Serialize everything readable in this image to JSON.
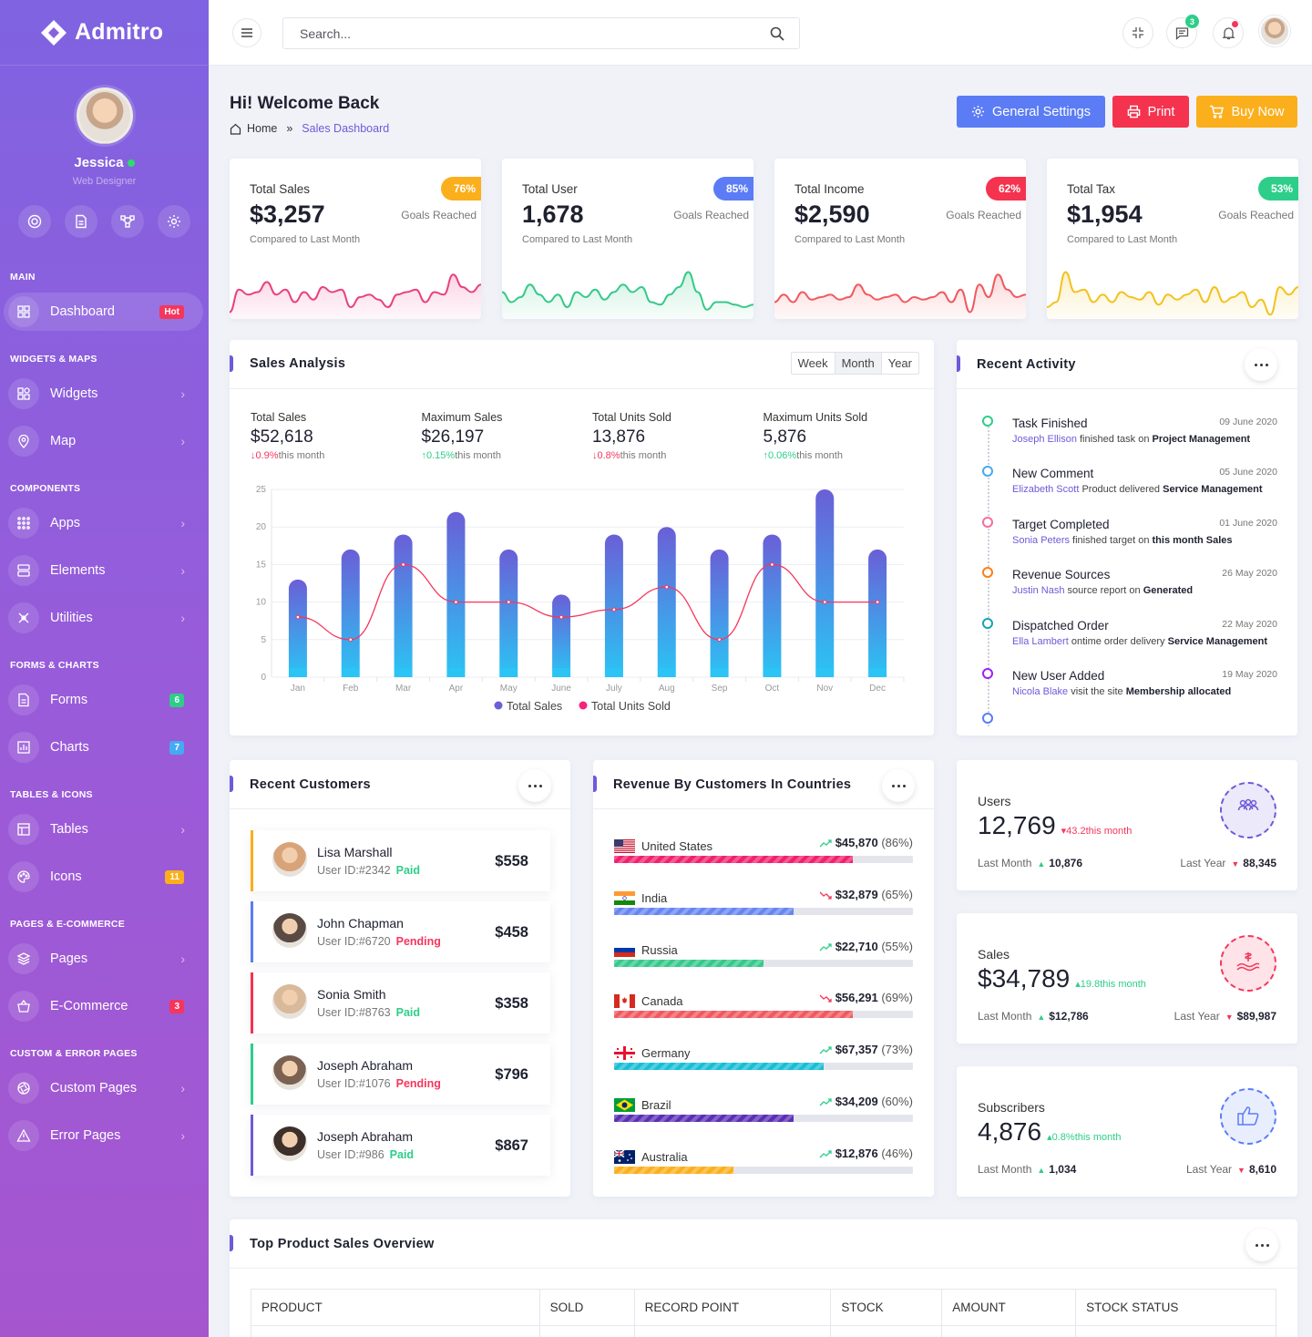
{
  "app": {
    "name": "Admitro"
  },
  "profile": {
    "name": "Jessica",
    "role": "Web Designer",
    "actions": [
      "lifebuoy-icon",
      "document-icon",
      "share-icon",
      "settings-icon"
    ]
  },
  "sidebar": {
    "sections": [
      {
        "title": "MAIN",
        "items": [
          {
            "label": "Dashboard",
            "icon": "grid-icon",
            "badge": "Hot",
            "badge_color": "#f5365c",
            "active": true
          }
        ]
      },
      {
        "title": "WIDGETS & MAPS",
        "items": [
          {
            "label": "Widgets",
            "icon": "widgets-icon"
          },
          {
            "label": "Map",
            "icon": "map-pin-icon"
          }
        ]
      },
      {
        "title": "COMPONENTS",
        "items": [
          {
            "label": "Apps",
            "icon": "apps-icon"
          },
          {
            "label": "Elements",
            "icon": "layers-icon"
          },
          {
            "label": "Utilities",
            "icon": "tools-icon"
          }
        ]
      },
      {
        "title": "FORMS & CHARTS",
        "items": [
          {
            "label": "Forms",
            "icon": "form-icon",
            "badge": "6",
            "badge_color": "#2dce89"
          },
          {
            "label": "Charts",
            "icon": "chart-icon",
            "badge": "7",
            "badge_color": "#45aaf2"
          }
        ]
      },
      {
        "title": "TABLES & ICONS",
        "items": [
          {
            "label": "Tables",
            "icon": "table-icon"
          },
          {
            "label": "Icons",
            "icon": "palette-icon",
            "badge": "11",
            "badge_color": "#fbaf1c"
          }
        ]
      },
      {
        "title": "PAGES & E-COMMERCE",
        "items": [
          {
            "label": "Pages",
            "icon": "stack-icon"
          },
          {
            "label": "E-Commerce",
            "icon": "basket-icon",
            "badge": "3",
            "badge_color": "#f5365c"
          }
        ]
      },
      {
        "title": "CUSTOM & ERROR PAGES",
        "items": [
          {
            "label": "Custom Pages",
            "icon": "aperture-icon"
          },
          {
            "label": "Error Pages",
            "icon": "warning-icon"
          }
        ]
      }
    ]
  },
  "topbar": {
    "search_placeholder": "Search...",
    "message_count": "3"
  },
  "header": {
    "title": "Hi! Welcome Back",
    "breadcrumb": {
      "home": "Home",
      "separator": "»",
      "current": "Sales Dashboard"
    },
    "buttons": {
      "settings": "General Settings",
      "print": "Print",
      "buy": "Buy Now"
    }
  },
  "stats": [
    {
      "title": "Total Sales",
      "value": "$3,257",
      "percent": "76%",
      "goal": "Goals Reached",
      "compare": "Compared to Last Month",
      "color": "#fbaf1c",
      "line": "#e8427d",
      "fill": "#fbd0e2"
    },
    {
      "title": "Total User",
      "value": "1,678",
      "percent": "85%",
      "goal": "Goals Reached",
      "compare": "Compared to Last Month",
      "color": "#5b7cf5",
      "line": "#36c98a",
      "fill": "#cdf1e0"
    },
    {
      "title": "Total Income",
      "value": "$2,590",
      "percent": "62%",
      "goal": "Goals Reached",
      "compare": "Compared to Last Month",
      "color": "#f5334f",
      "line": "#f0595f",
      "fill": "#fcd4d4"
    },
    {
      "title": "Total Tax",
      "value": "$1,954",
      "percent": "53%",
      "goal": "Goals Reached",
      "compare": "Compared to Last Month",
      "color": "#2dce89",
      "line": "#f2c21f",
      "fill": "#fbefc4"
    }
  ],
  "sales_analysis": {
    "title": "Sales Analysis",
    "periods": [
      "Week",
      "Month",
      "Year"
    ],
    "summary": [
      {
        "label": "Total Sales",
        "value": "$52,618",
        "arrow": "↓",
        "change": "0.9%",
        "trend": "down",
        "suffix": "this month"
      },
      {
        "label": "Maximum Sales",
        "value": "$26,197",
        "arrow": "↑",
        "change": "0.15%",
        "trend": "up",
        "suffix": "this month"
      },
      {
        "label": "Total Units Sold",
        "value": "13,876",
        "arrow": "↓",
        "change": "0.8%",
        "trend": "down",
        "suffix": "this month"
      },
      {
        "label": "Maximum Units Sold",
        "value": "5,876",
        "arrow": "↑",
        "change": "0.06%",
        "trend": "up",
        "suffix": "this month"
      }
    ]
  },
  "chart_data": {
    "type": "bar",
    "categories": [
      "Jan",
      "Feb",
      "Mar",
      "Apr",
      "May",
      "June",
      "July",
      "Aug",
      "Sep",
      "Oct",
      "Nov",
      "Dec"
    ],
    "series": [
      {
        "name": "Total Sales",
        "type": "bar",
        "color": "#6a5fd7",
        "values": [
          13,
          17,
          19,
          22,
          17,
          11,
          19,
          20,
          17,
          19,
          25,
          17
        ]
      },
      {
        "name": "Total Units Sold",
        "type": "line",
        "color": "#f5365c",
        "values": [
          8,
          5,
          15,
          10,
          10,
          8,
          9,
          12,
          5,
          15,
          10,
          10
        ]
      }
    ],
    "ylim": [
      0,
      25
    ],
    "yticks": [
      0,
      5,
      10,
      15,
      20,
      25
    ],
    "grid": true,
    "legend": "bottom"
  },
  "recent_activity": {
    "title": "Recent Activity",
    "items": [
      {
        "title": "Task Finished",
        "date": "09 June 2020",
        "who": "Joseph Ellison",
        "text": "finished task on",
        "target": "Project Management",
        "color": "#2dce89"
      },
      {
        "title": "New Comment",
        "date": "05 June 2020",
        "who": "Elizabeth Scott",
        "text": "Product delivered",
        "target": "Service Management",
        "color": "#45aaf2"
      },
      {
        "title": "Target Completed",
        "date": "01 June 2020",
        "who": "Sonia Peters",
        "text": "finished target on",
        "target": "this month Sales",
        "color": "#f66d9b"
      },
      {
        "title": "Revenue Sources",
        "date": "26 May 2020",
        "who": "Justin Nash",
        "text": "source report on",
        "target": "Generated",
        "color": "#fd7e14"
      },
      {
        "title": "Dispatched Order",
        "date": "22 May 2020",
        "who": "Ella Lambert",
        "text": "ontime order delivery",
        "target": "Service Management",
        "color": "#17a2b8"
      },
      {
        "title": "New User Added",
        "date": "19 May 2020",
        "who": "Nicola Blake",
        "text": "visit the site",
        "target": "Membership allocated",
        "color": "#a020f0"
      }
    ]
  },
  "recent_customers": {
    "title": "Recent Customers",
    "items": [
      {
        "name": "Lisa Marshall",
        "uid": "User ID:#2342",
        "status": "Paid",
        "status_color": "#2dce89",
        "amount": "$558",
        "border": "#fbaf1c",
        "avatar": "#d9a37a"
      },
      {
        "name": "John Chapman",
        "uid": "User ID:#6720",
        "status": "Pending",
        "status_color": "#f5365c",
        "amount": "$458",
        "border": "#5b7cf5",
        "avatar": "#5a4a44"
      },
      {
        "name": "Sonia Smith",
        "uid": "User ID:#8763",
        "status": "Paid",
        "status_color": "#2dce89",
        "amount": "$358",
        "border": "#f5334f",
        "avatar": "#d8b99a"
      },
      {
        "name": "Joseph Abraham",
        "uid": "User ID:#1076",
        "status": "Pending",
        "status_color": "#f5365c",
        "amount": "$796",
        "border": "#2dce89",
        "avatar": "#7a6152"
      },
      {
        "name": "Joseph Abraham",
        "uid": "User ID:#986",
        "status": "Paid",
        "status_color": "#2dce89",
        "amount": "$867",
        "border": "#6d5ad8",
        "avatar": "#3d302b"
      }
    ]
  },
  "revenue_countries": {
    "title": "Revenue By Customers In Countries",
    "items": [
      {
        "name": "United States",
        "value": "$45,870",
        "pct": "(86%)",
        "trend": "up",
        "fill": 0.8,
        "color": "#f1216e"
      },
      {
        "name": "India",
        "value": "$32,879",
        "pct": "(65%)",
        "trend": "down",
        "fill": 0.6,
        "color": "#6786f2"
      },
      {
        "name": "Russia",
        "value": "$22,710",
        "pct": "(55%)",
        "trend": "up",
        "fill": 0.5,
        "color": "#36c98a"
      },
      {
        "name": "Canada",
        "value": "$56,291",
        "pct": "(69%)",
        "trend": "down",
        "fill": 0.8,
        "color": "#f0595f"
      },
      {
        "name": "Germany",
        "value": "$67,357",
        "pct": "(73%)",
        "trend": "up",
        "fill": 0.7,
        "color": "#17bed6"
      },
      {
        "name": "Brazil",
        "value": "$34,209",
        "pct": "(60%)",
        "trend": "up",
        "fill": 0.6,
        "color": "#5a2fb5"
      },
      {
        "name": "Australia",
        "value": "$12,876",
        "pct": "(46%)",
        "trend": "up",
        "fill": 0.4,
        "color": "#fbaf1c"
      }
    ]
  },
  "mini_stats": [
    {
      "label": "Users",
      "value": "12,769",
      "arrow": "▾",
      "change": "43.2",
      "trend": "down",
      "suffix": "this month",
      "last_month_label": "Last Month",
      "last_month": "10,876",
      "last_year_label": "Last Year",
      "last_year": "88,345",
      "color": "#6d5ad8",
      "icon": "users-icon"
    },
    {
      "label": "Sales",
      "value": "$34,789",
      "arrow": "▴",
      "change": "19.8",
      "trend": "up",
      "suffix": "this month",
      "last_month_label": "Last Month",
      "last_month": "$12,786",
      "last_year_label": "Last Year",
      "last_year": "$89,987",
      "color": "#f5365c",
      "icon": "money-hand-icon"
    },
    {
      "label": "Subscribers",
      "value": "4,876",
      "arrow": "▴",
      "change": "0.8%",
      "trend": "up",
      "suffix": "this month",
      "last_month_label": "Last Month",
      "last_month": "1,034",
      "last_year_label": "Last Year",
      "last_year": "8,610",
      "color": "#5b7cf5",
      "icon": "thumbs-up-icon"
    }
  ],
  "top_products": {
    "title": "Top Product Sales Overview",
    "columns": [
      "PRODUCT",
      "SOLD",
      "RECORD POINT",
      "STOCK",
      "AMOUNT",
      "STOCK STATUS"
    ]
  }
}
